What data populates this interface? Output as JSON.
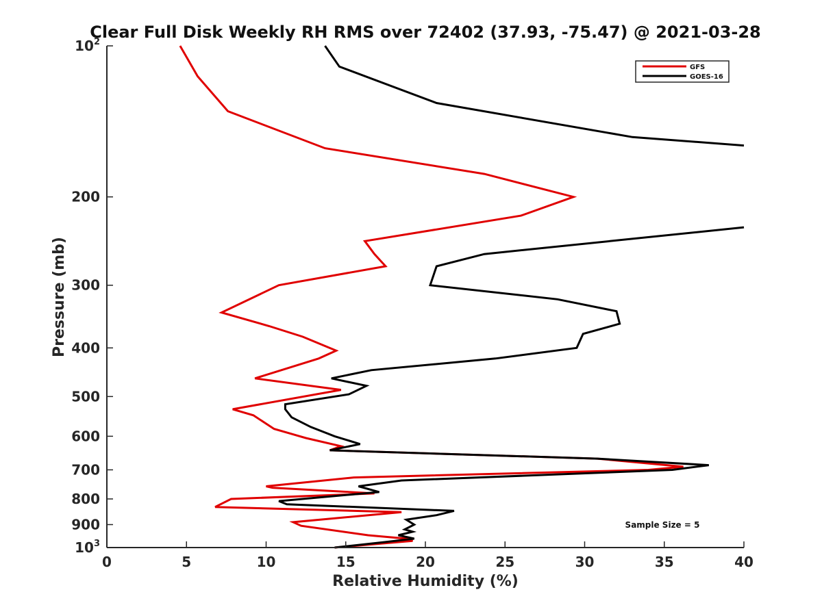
{
  "chart_data": {
    "type": "line",
    "title": "Clear Full Disk Weekly RH RMS over 72402 (37.93, -75.47) @ 2021-03-28",
    "xlabel": "Relative Humidity (%)",
    "ylabel": "Pressure (mb)",
    "xlim": [
      0,
      40
    ],
    "ylim": [
      100,
      1000
    ],
    "yscale": "log",
    "y_reversed": true,
    "x_ticks": [
      0,
      5,
      10,
      15,
      20,
      25,
      30,
      35,
      40
    ],
    "x_tick_labels": [
      "0",
      "5",
      "10",
      "15",
      "20",
      "25",
      "30",
      "35",
      "40"
    ],
    "y_ticks": [
      {
        "value": 100,
        "base": "10",
        "exp": "2"
      },
      {
        "value": 200,
        "label": "200"
      },
      {
        "value": 300,
        "label": "300"
      },
      {
        "value": 400,
        "label": "400"
      },
      {
        "value": 500,
        "label": "500"
      },
      {
        "value": 600,
        "label": "600"
      },
      {
        "value": 700,
        "label": "700"
      },
      {
        "value": 800,
        "label": "800"
      },
      {
        "value": 900,
        "label": "900"
      },
      {
        "value": 1000,
        "base": "10",
        "exp": "3"
      }
    ],
    "legend_position": "top-right",
    "annotation": "Sample Size = 5",
    "series": [
      {
        "name": "GFS",
        "color": "#e00000",
        "points": [
          [
            4.6,
            100
          ],
          [
            5.7,
            115
          ],
          [
            7.6,
            135
          ],
          [
            13.7,
            160
          ],
          [
            23.7,
            180
          ],
          [
            29.3,
            200
          ],
          [
            26.0,
            218
          ],
          [
            16.2,
            245
          ],
          [
            16.8,
            260
          ],
          [
            17.5,
            275
          ],
          [
            10.8,
            300
          ],
          [
            7.2,
            340
          ],
          [
            10.2,
            362
          ],
          [
            12.3,
            380
          ],
          [
            14.4,
            405
          ],
          [
            13.3,
            420
          ],
          [
            9.3,
            460
          ],
          [
            14.7,
            485
          ],
          [
            7.9,
            530
          ],
          [
            9.2,
            545
          ],
          [
            10.5,
            580
          ],
          [
            12.5,
            605
          ],
          [
            14.7,
            628
          ],
          [
            14.0,
            640
          ],
          [
            30.8,
            665
          ],
          [
            36.2,
            690
          ],
          [
            34.0,
            700
          ],
          [
            15.5,
            725
          ],
          [
            10.0,
            755
          ],
          [
            10.4,
            760
          ],
          [
            16.8,
            780
          ],
          [
            7.8,
            800
          ],
          [
            6.8,
            830
          ],
          [
            18.5,
            850
          ],
          [
            11.7,
            890
          ],
          [
            12.2,
            905
          ],
          [
            16.4,
            945
          ],
          [
            18.8,
            960
          ],
          [
            19.2,
            970
          ],
          [
            14.3,
            1000
          ]
        ]
      },
      {
        "name": "GOES-16",
        "color": "#000000",
        "points": [
          [
            13.7,
            100
          ],
          [
            14.6,
            110
          ],
          [
            20.7,
            130
          ],
          [
            33.0,
            152
          ],
          [
            40.0,
            158
          ],
          [
            null,
            null
          ],
          [
            40.0,
            230
          ],
          [
            23.7,
            260
          ],
          [
            20.7,
            275
          ],
          [
            20.3,
            300
          ],
          [
            28.3,
            320
          ],
          [
            32.0,
            338
          ],
          [
            32.2,
            358
          ],
          [
            29.9,
            375
          ],
          [
            29.5,
            400
          ],
          [
            24.4,
            420
          ],
          [
            16.6,
            443
          ],
          [
            14.1,
            460
          ],
          [
            16.3,
            476
          ],
          [
            15.2,
            495
          ],
          [
            11.2,
            518
          ],
          [
            11.2,
            530
          ],
          [
            11.6,
            550
          ],
          [
            12.8,
            575
          ],
          [
            14.3,
            600
          ],
          [
            15.9,
            622
          ],
          [
            14.0,
            640
          ],
          [
            30.8,
            665
          ],
          [
            37.8,
            685
          ],
          [
            35.5,
            700
          ],
          [
            18.5,
            735
          ],
          [
            15.8,
            755
          ],
          [
            17.1,
            775
          ],
          [
            10.8,
            808
          ],
          [
            11.3,
            820
          ],
          [
            21.8,
            845
          ],
          [
            20.7,
            862
          ],
          [
            18.8,
            880
          ],
          [
            19.3,
            900
          ],
          [
            18.7,
            920
          ],
          [
            19.2,
            930
          ],
          [
            18.3,
            945
          ],
          [
            19.3,
            960
          ],
          [
            17.5,
            975
          ],
          [
            14.3,
            1000
          ]
        ]
      }
    ]
  }
}
